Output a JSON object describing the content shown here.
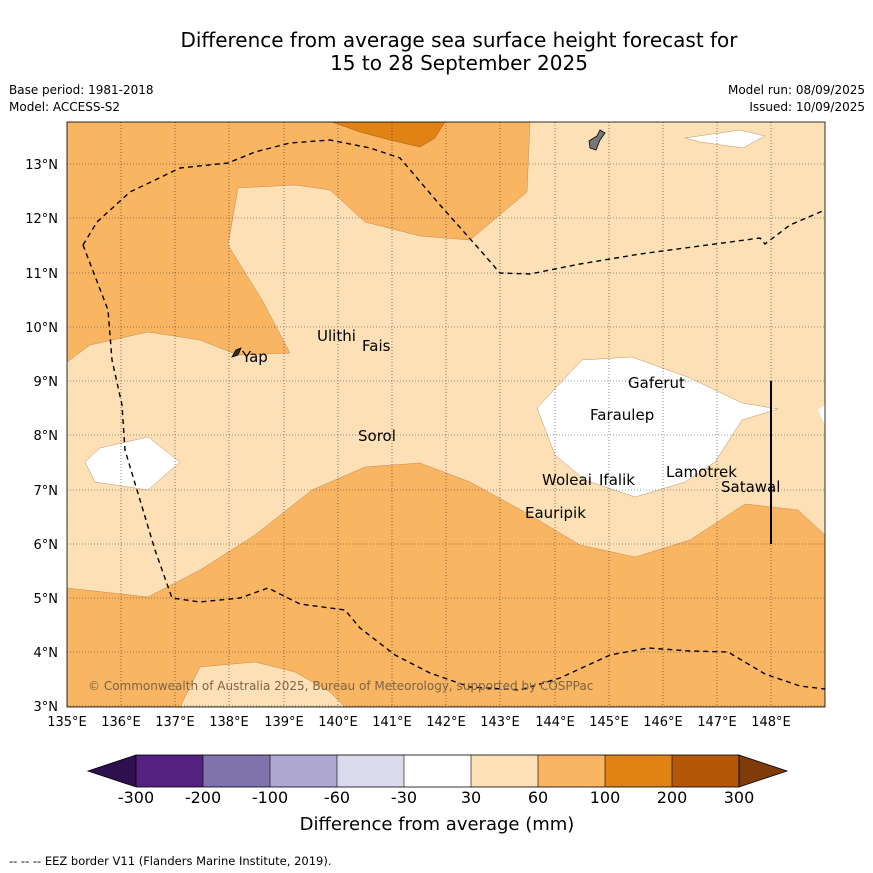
{
  "title_line1": "Difference from average sea surface height forecast for",
  "title_line2": "15 to 28 September 2025",
  "base_period": "Base period: 1981-2018",
  "model": "Model: ACCESS-S2",
  "model_run": "Model run: 08/09/2025",
  "issued": "Issued: 10/09/2025",
  "lat_labels": [
    "3°N",
    "4°N",
    "5°N",
    "6°N",
    "7°N",
    "8°N",
    "9°N",
    "10°N",
    "11°N",
    "12°N",
    "13°N"
  ],
  "lon_labels": [
    "135°E",
    "136°E",
    "137°E",
    "138°E",
    "139°E",
    "140°E",
    "141°E",
    "142°E",
    "143°E",
    "144°E",
    "145°E",
    "146°E",
    "147°E",
    "148°E"
  ],
  "places": [
    "Ulithi",
    "Fais",
    "Yap",
    "Sorol",
    "Gaferut",
    "Faraulep",
    "Woleai",
    "Ifalik",
    "Lamotrek",
    "Satawal",
    "Eauripik"
  ],
  "copyright": "© Commonwealth of Australia 2025, Bureau of Meteorology, supported by COSPPac",
  "colorbar": {
    "ticks": [
      "-300",
      "-200",
      "-100",
      "-60",
      "-30",
      "30",
      "60",
      "100",
      "200",
      "300"
    ],
    "colors": [
      "#2e0f4f",
      "#54217f",
      "#7f72ad",
      "#aea7d1",
      "#dadaeb",
      "#ffffff",
      "#fde0b5",
      "#f9b562",
      "#e08214",
      "#b35806",
      "#7f3b08"
    ],
    "label": "Difference from average (mm)"
  },
  "legend_note": "-- -- -- EEZ border V11 (Flanders Marine Institute, 2019)."
}
